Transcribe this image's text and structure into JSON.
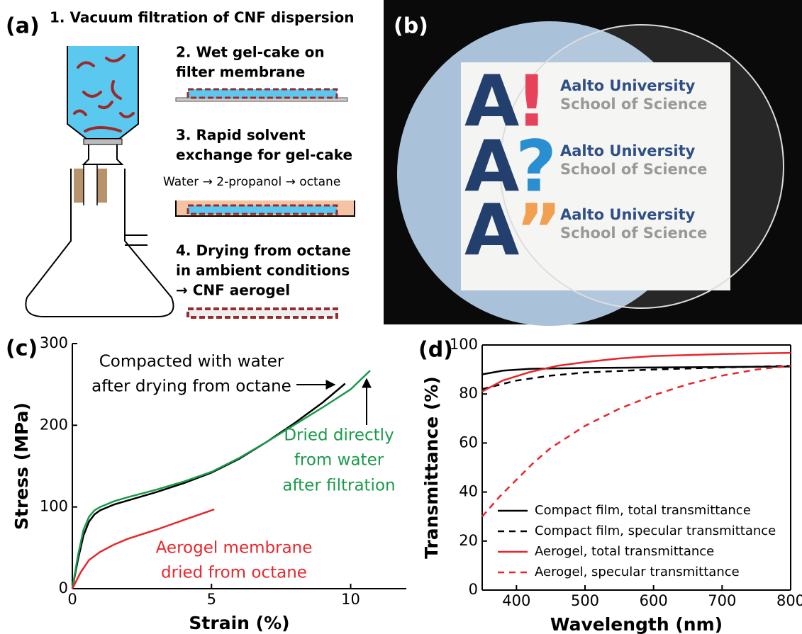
{
  "panel_a": {
    "label": "(a)",
    "step1": "1. Vacuum filtration of CNF dispersion",
    "step2": [
      "2. Wet gel-cake on",
      "filter membrane"
    ],
    "step3": [
      "3. Rapid solvent",
      "exchange for gel-cake"
    ],
    "solvents": "Water → 2-propanol → octane",
    "step4": [
      "4. Drying from octane",
      "in ambient conditions",
      "→ CNF aerogel"
    ]
  },
  "panel_b": {
    "label": "(b)",
    "logos": [
      {
        "letter": "A",
        "mark": "!",
        "line1": "Aalto University",
        "line2": "School of Science"
      },
      {
        "letter": "A",
        "mark": "?",
        "line1": "Aalto University",
        "line2": "School of Science"
      },
      {
        "letter": "A",
        "mark": "”",
        "line1": "Aalto University",
        "line2": "School of Science"
      }
    ]
  },
  "chart_data": [
    {
      "type": "line",
      "panel_label": "(c)",
      "x_label": "Strain (%)",
      "y_label": "Stress (MPa)",
      "xlim": [
        0,
        12
      ],
      "ylim": [
        0,
        300
      ],
      "xticks": [
        0,
        5,
        10
      ],
      "yticks": [
        0,
        100,
        200,
        300
      ],
      "frame": false,
      "series": [
        {
          "label_lines": [
            "Compacted with water",
            "after drying from octane"
          ],
          "color": "#000000",
          "dash": false,
          "x": [
            0,
            0.2,
            0.4,
            0.6,
            0.8,
            1,
            1.5,
            2,
            3,
            4,
            5,
            6,
            7,
            8,
            9,
            9.8
          ],
          "values": [
            0,
            35,
            65,
            82,
            91,
            96,
            103,
            108,
            118,
            129,
            142,
            159,
            180,
            203,
            228,
            251
          ]
        },
        {
          "label_lines": [
            "Dried directly",
            "from water",
            "after filtration"
          ],
          "color": "#1a9a4a",
          "dash": false,
          "x": [
            0,
            0.2,
            0.4,
            0.6,
            0.8,
            1,
            1.5,
            2,
            3,
            4,
            5,
            6,
            7,
            8,
            9,
            10,
            10.7
          ],
          "values": [
            0,
            40,
            72,
            88,
            96,
            100,
            107,
            112,
            121,
            131,
            143,
            160,
            180,
            201,
            222,
            244,
            267
          ]
        },
        {
          "label_lines": [
            "Aerogel membrane",
            "dried from octane"
          ],
          "color": "#e8262b",
          "dash": false,
          "x": [
            0,
            0.3,
            0.6,
            1,
            1.5,
            2,
            3,
            4,
            5.1
          ],
          "values": [
            0,
            20,
            35,
            45,
            54,
            61,
            72,
            84,
            97
          ]
        }
      ]
    },
    {
      "type": "line",
      "panel_label": "(d)",
      "x_label": "Wavelength (nm)",
      "y_label": "Transmittance (%)",
      "xlim": [
        350,
        800
      ],
      "ylim": [
        0,
        100
      ],
      "xticks": [
        400,
        500,
        600,
        700,
        800
      ],
      "yticks": [
        0,
        20,
        40,
        60,
        80,
        100
      ],
      "frame": true,
      "legend": "lower right",
      "series": [
        {
          "name": "Compact film, total transmittance",
          "color": "#000000",
          "dash": false,
          "x": [
            350,
            380,
            420,
            500,
            600,
            700,
            800
          ],
          "values": [
            88,
            89.5,
            90.3,
            90.6,
            90.8,
            91,
            91.2
          ]
        },
        {
          "name": "Compact film, specular transmittance",
          "color": "#000000",
          "dash": true,
          "x": [
            350,
            400,
            450,
            500,
            600,
            700,
            800
          ],
          "values": [
            82,
            85.5,
            87.5,
            88.8,
            90,
            90.8,
            91.5
          ]
        },
        {
          "name": "Aerogel, total transmittance",
          "color": "#e8262b",
          "dash": false,
          "x": [
            350,
            380,
            420,
            460,
            500,
            550,
            600,
            700,
            800
          ],
          "values": [
            81,
            85.5,
            89,
            91.5,
            93,
            94.5,
            95.5,
            96.3,
            96.8
          ]
        },
        {
          "name": "Aerogel, specular transmittance",
          "color": "#e8262b",
          "dash": true,
          "x": [
            350,
            375,
            400,
            425,
            450,
            500,
            550,
            600,
            650,
            700,
            750,
            800
          ],
          "values": [
            30,
            38,
            45,
            52,
            58,
            67,
            74,
            79.5,
            84,
            87.5,
            90,
            91.5
          ]
        }
      ]
    }
  ]
}
